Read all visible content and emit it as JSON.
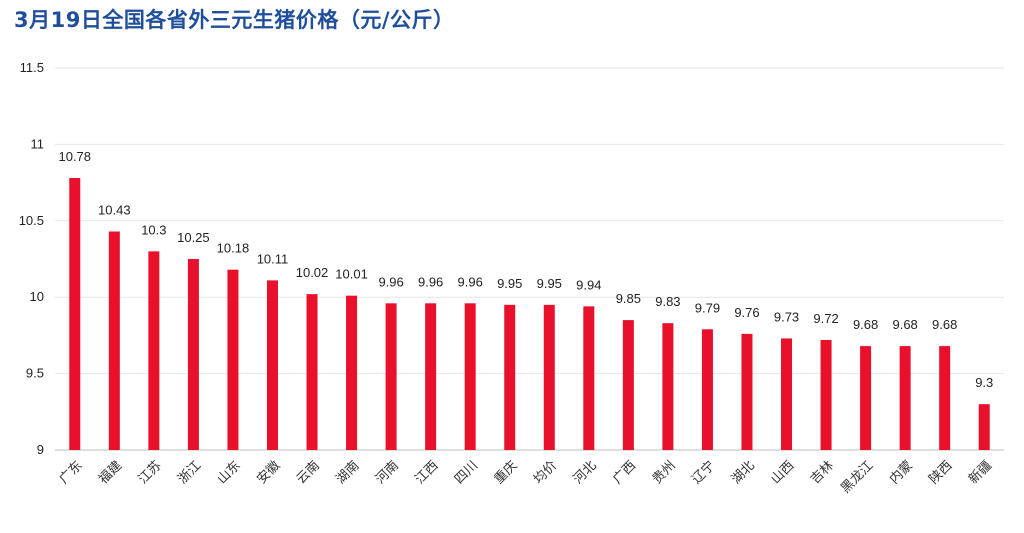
{
  "title": "3月19日全国各省外三元生猪价格（元/公斤）",
  "chart_data": {
    "type": "bar",
    "categories": [
      "广东",
      "福建",
      "江苏",
      "浙江",
      "山东",
      "安徽",
      "云南",
      "湖南",
      "河南",
      "江西",
      "四川",
      "重庆",
      "均价",
      "河北",
      "广西",
      "贵州",
      "辽宁",
      "湖北",
      "山西",
      "吉林",
      "黑龙江",
      "内蒙",
      "陕西",
      "新疆"
    ],
    "values": [
      10.78,
      10.43,
      10.3,
      10.25,
      10.18,
      10.11,
      10.02,
      10.01,
      9.96,
      9.96,
      9.96,
      9.95,
      9.95,
      9.94,
      9.85,
      9.83,
      9.79,
      9.76,
      9.73,
      9.72,
      9.68,
      9.68,
      9.68,
      9.3
    ],
    "data_labels": [
      "10.78",
      "10.43",
      "10.3",
      "10.25",
      "10.18",
      "10.11",
      "10.02",
      "10.01",
      "9.96",
      "9.96",
      "9.96",
      "9.95",
      "9.95",
      "9.94",
      "9.85",
      "9.83",
      "9.79",
      "9.76",
      "9.73",
      "9.72",
      "9.68",
      "9.68",
      "9.68",
      "9.3"
    ],
    "ylim": [
      9,
      11.5
    ],
    "yticks": [
      "9",
      "9.5",
      "10",
      "10.5",
      "11",
      "11.5"
    ],
    "bar_color": "#e8102a",
    "grid": true
  }
}
